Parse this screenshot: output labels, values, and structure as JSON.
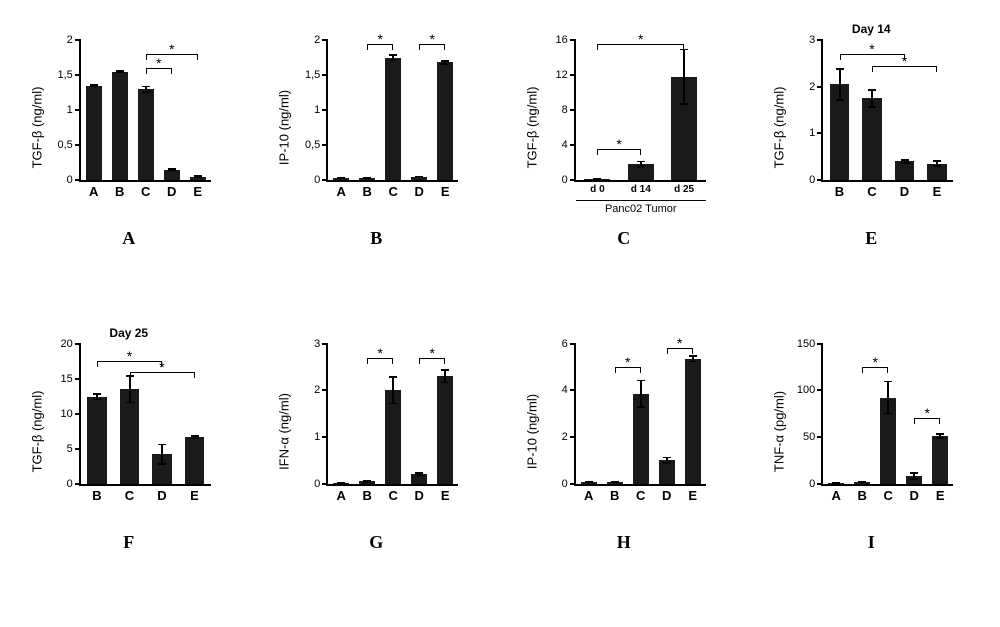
{
  "bar_color": "#1a1a1a",
  "star": "*",
  "panels": [
    {
      "id": "A",
      "title": null,
      "ylabel": "TGF-β (ng/ml)",
      "ymax": 2,
      "yticks": [
        0,
        0.5,
        1,
        1.5,
        2
      ],
      "tick_format": "comma",
      "cats": [
        "A",
        "B",
        "C",
        "D",
        "E"
      ],
      "vals": [
        1.35,
        1.55,
        1.3,
        0.15,
        0.05
      ],
      "errs": [
        0.02,
        0.02,
        0.05,
        0.02,
        0.02
      ],
      "sigs": [
        {
          "from": 2,
          "to": 4,
          "y": 1.8
        },
        {
          "from": 2,
          "to": 3,
          "y": 1.6
        }
      ]
    },
    {
      "id": "B",
      "title": null,
      "ylabel": "IP-10 (ng/ml)",
      "ymax": 2,
      "yticks": [
        0,
        0.5,
        1,
        1.5,
        2
      ],
      "tick_format": "comma",
      "cats": [
        "A",
        "B",
        "C",
        "D",
        "E"
      ],
      "vals": [
        0.03,
        0.03,
        1.75,
        0.05,
        1.68
      ],
      "errs": [
        0.01,
        0.01,
        0.05,
        0.01,
        0.03
      ],
      "sigs": [
        {
          "from": 1,
          "to": 2,
          "y": 1.95
        },
        {
          "from": 3,
          "to": 4,
          "y": 1.95
        }
      ]
    },
    {
      "id": "C",
      "title": null,
      "ylabel": "TGF-β (ng/ml)",
      "ymax": 16,
      "yticks": [
        0,
        4,
        8,
        12,
        16
      ],
      "tick_format": "plain",
      "cats": [
        "d 0",
        "d 14",
        "d 25"
      ],
      "xtitle": "Panc02 Tumor",
      "vals": [
        0.1,
        1.8,
        11.8
      ],
      "errs": [
        0.05,
        0.4,
        3.2
      ],
      "sigs": [
        {
          "from": 0,
          "to": 2,
          "y": 15.5
        },
        {
          "from": 0,
          "to": 1,
          "y": 3.5
        }
      ]
    },
    {
      "id": "E",
      "title": "Day 14",
      "ylabel": "TGF-β (ng/ml)",
      "ymax": 3,
      "yticks": [
        0,
        1,
        2,
        3
      ],
      "tick_format": "plain",
      "cats": [
        "B",
        "C",
        "D",
        "E"
      ],
      "vals": [
        2.05,
        1.75,
        0.4,
        0.35
      ],
      "errs": [
        0.35,
        0.2,
        0.05,
        0.07
      ],
      "sigs": [
        {
          "from": 0,
          "to": 2,
          "y": 2.7
        },
        {
          "from": 1,
          "to": 3,
          "y": 2.45
        }
      ]
    },
    {
      "id": "F",
      "title": "Day 25",
      "ylabel": "TGF-β (ng/ml)",
      "ymax": 20,
      "yticks": [
        0,
        5,
        10,
        15,
        20
      ],
      "tick_format": "plain",
      "cats": [
        "B",
        "C",
        "D",
        "E"
      ],
      "vals": [
        12.4,
        13.5,
        4.2,
        6.6
      ],
      "errs": [
        0.5,
        2.0,
        1.5,
        0.3
      ],
      "sigs": [
        {
          "from": 0,
          "to": 2,
          "y": 17.5
        },
        {
          "from": 1,
          "to": 3,
          "y": 16
        }
      ]
    },
    {
      "id": "G",
      "title": null,
      "ylabel": "IFN-α (ng/ml)",
      "ymax": 3,
      "yticks": [
        0,
        1,
        2,
        3
      ],
      "tick_format": "plain",
      "cats": [
        "A",
        "B",
        "C",
        "D",
        "E"
      ],
      "vals": [
        0.02,
        0.05,
        2.0,
        0.2,
        2.3
      ],
      "errs": [
        0.01,
        0.03,
        0.3,
        0.04,
        0.15
      ],
      "sigs": [
        {
          "from": 1,
          "to": 2,
          "y": 2.7
        },
        {
          "from": 3,
          "to": 4,
          "y": 2.7
        }
      ]
    },
    {
      "id": "H",
      "title": null,
      "ylabel": "IP-10 (ng/ml)",
      "ymax": 6,
      "yticks": [
        0,
        2,
        4,
        6
      ],
      "tick_format": "plain",
      "cats": [
        "A",
        "B",
        "C",
        "D",
        "E"
      ],
      "vals": [
        0.05,
        0.05,
        3.85,
        1.0,
        5.35
      ],
      "errs": [
        0.02,
        0.02,
        0.6,
        0.15,
        0.15
      ],
      "sigs": [
        {
          "from": 1,
          "to": 2,
          "y": 5.0
        },
        {
          "from": 3,
          "to": 4,
          "y": 5.8
        }
      ]
    },
    {
      "id": "I",
      "title": null,
      "ylabel": "TNF-α (pg/ml)",
      "ymax": 150,
      "yticks": [
        0,
        50,
        100,
        150
      ],
      "tick_format": "plain",
      "cats": [
        "A",
        "B",
        "C",
        "D",
        "E"
      ],
      "vals": [
        1,
        1.5,
        92,
        8,
        51
      ],
      "errs": [
        0.5,
        0.5,
        18,
        4,
        3
      ],
      "sigs": [
        {
          "from": 1,
          "to": 2,
          "y": 125
        },
        {
          "from": 3,
          "to": 4,
          "y": 70
        }
      ]
    }
  ]
}
